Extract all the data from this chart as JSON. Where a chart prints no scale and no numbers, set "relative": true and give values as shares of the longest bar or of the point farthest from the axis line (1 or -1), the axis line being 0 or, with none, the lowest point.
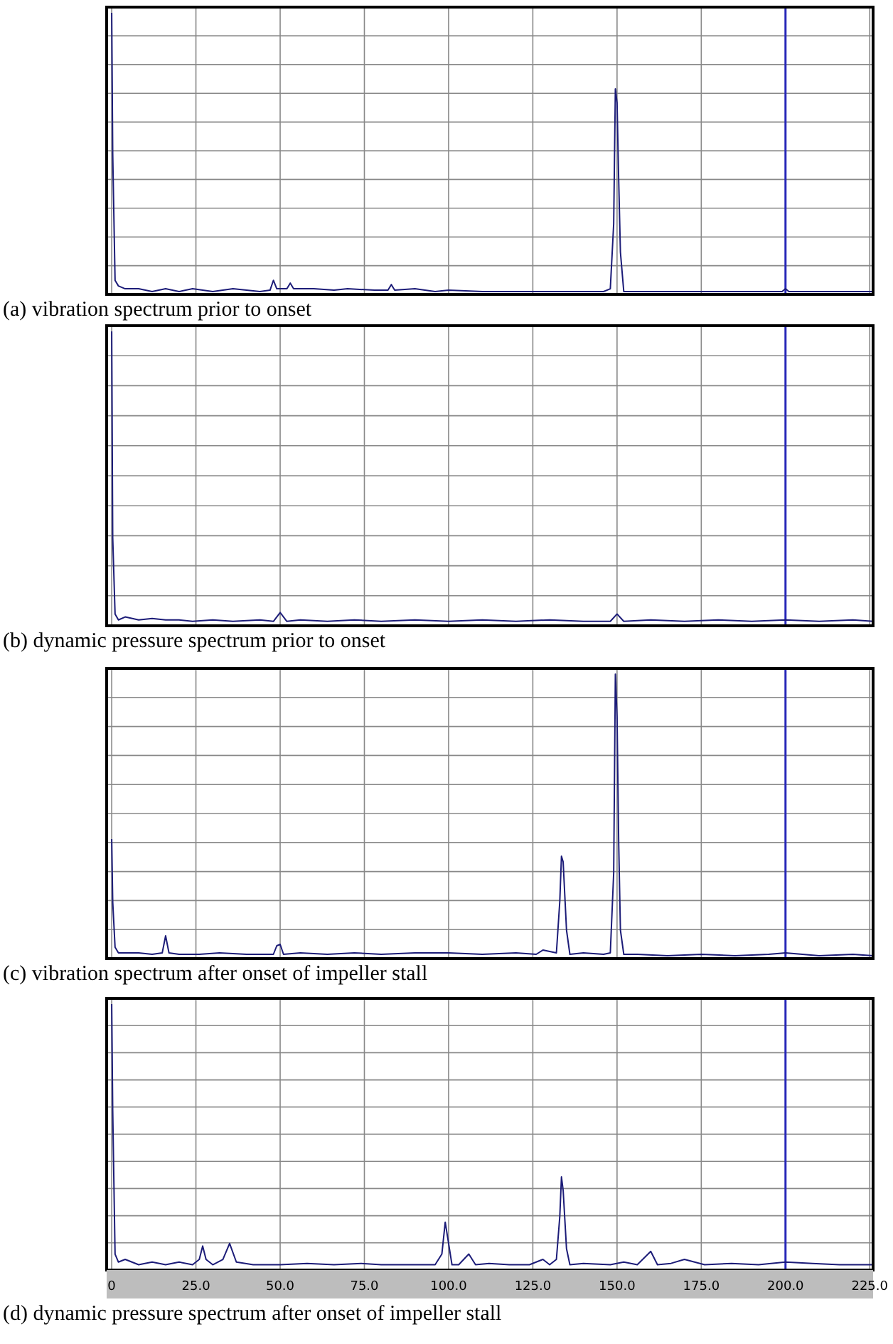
{
  "chart_data": [
    {
      "type": "line",
      "title": "(a) vibration spectrum prior to onset",
      "relative": true,
      "xlim": [
        -1.5,
        226
      ],
      "xticks": [
        {
          "value": 0,
          "label": null
        },
        {
          "value": 25,
          "label": null
        },
        {
          "value": 50,
          "label": null
        },
        {
          "value": 75,
          "label": null
        },
        {
          "value": 100,
          "label": null
        },
        {
          "value": 125,
          "label": null
        },
        {
          "value": 150,
          "label": null
        },
        {
          "value": 175,
          "label": null
        },
        {
          "value": 200,
          "label": null
        },
        {
          "value": 225,
          "label": null
        }
      ],
      "tick_labels": false,
      "grid": true,
      "ref_lines": [
        {
          "axis": "x",
          "value": 200,
          "color": "#2828b8"
        }
      ],
      "series": [
        {
          "color": "#1c1c78",
          "x": [
            0,
            0.3,
            1,
            2,
            4,
            8,
            12,
            16,
            20,
            24,
            30,
            36,
            44,
            47,
            48,
            49,
            52,
            53,
            54,
            60,
            66,
            70,
            78,
            82,
            83,
            84,
            90,
            96,
            100,
            110,
            120,
            130,
            140,
            146,
            148,
            149,
            149.5,
            150,
            150.5,
            151,
            152,
            156,
            165,
            175,
            185,
            195,
            199,
            200,
            201,
            210,
            220,
            226
          ],
          "values": [
            1,
            0.5,
            0.05,
            0.03,
            0.02,
            0.02,
            0.01,
            0.02,
            0.01,
            0.02,
            0.01,
            0.02,
            0.01,
            0.015,
            0.05,
            0.02,
            0.02,
            0.04,
            0.02,
            0.02,
            0.015,
            0.02,
            0.015,
            0.015,
            0.035,
            0.015,
            0.02,
            0.01,
            0.015,
            0.01,
            0.01,
            0.01,
            0.01,
            0.01,
            0.02,
            0.25,
            0.73,
            0.68,
            0.4,
            0.15,
            0.01,
            0.01,
            0.01,
            0.01,
            0.01,
            0.01,
            0.01,
            0.02,
            0.01,
            0.01,
            0.01,
            0.01
          ]
        }
      ]
    },
    {
      "type": "line",
      "title": "(b) dynamic pressure spectrum prior to onset",
      "relative": true,
      "xlim": [
        -1.5,
        226
      ],
      "xticks": [
        {
          "value": 0,
          "label": null
        },
        {
          "value": 25,
          "label": null
        },
        {
          "value": 50,
          "label": null
        },
        {
          "value": 75,
          "label": null
        },
        {
          "value": 100,
          "label": null
        },
        {
          "value": 125,
          "label": null
        },
        {
          "value": 150,
          "label": null
        },
        {
          "value": 175,
          "label": null
        },
        {
          "value": 200,
          "label": null
        },
        {
          "value": 225,
          "label": null
        }
      ],
      "tick_labels": false,
      "grid": true,
      "ref_lines": [
        {
          "axis": "x",
          "value": 200,
          "color": "#2828b8"
        }
      ],
      "series": [
        {
          "color": "#1c1c78",
          "x": [
            0,
            0.3,
            1,
            2,
            4,
            8,
            12,
            16,
            20,
            24,
            30,
            36,
            44,
            48,
            50,
            52,
            56,
            64,
            72,
            80,
            90,
            100,
            110,
            120,
            130,
            140,
            148,
            150,
            152,
            160,
            170,
            180,
            190,
            200,
            210,
            220,
            226
          ],
          "values": [
            1,
            0.3,
            0.04,
            0.02,
            0.03,
            0.02,
            0.025,
            0.02,
            0.02,
            0.015,
            0.02,
            0.015,
            0.02,
            0.015,
            0.045,
            0.015,
            0.02,
            0.015,
            0.02,
            0.015,
            0.02,
            0.015,
            0.02,
            0.015,
            0.02,
            0.015,
            0.015,
            0.04,
            0.015,
            0.02,
            0.015,
            0.02,
            0.015,
            0.02,
            0.015,
            0.02,
            0.015
          ]
        }
      ]
    },
    {
      "type": "line",
      "title": "(c) vibration spectrum after onset of impeller stall",
      "relative": true,
      "xlim": [
        -1.5,
        226
      ],
      "xticks": [
        {
          "value": 0,
          "label": null
        },
        {
          "value": 25,
          "label": null
        },
        {
          "value": 50,
          "label": null
        },
        {
          "value": 75,
          "label": null
        },
        {
          "value": 100,
          "label": null
        },
        {
          "value": 125,
          "label": null
        },
        {
          "value": 150,
          "label": null
        },
        {
          "value": 175,
          "label": null
        },
        {
          "value": 200,
          "label": null
        },
        {
          "value": 225,
          "label": null
        }
      ],
      "tick_labels": false,
      "grid": true,
      "ref_lines": [
        {
          "axis": "x",
          "value": 200,
          "color": "#2828b8"
        }
      ],
      "series": [
        {
          "color": "#1c1c78",
          "x": [
            0,
            0.3,
            1,
            2,
            4,
            8,
            12,
            15,
            16,
            17,
            20,
            26,
            32,
            40,
            48,
            49,
            50,
            51,
            56,
            64,
            72,
            80,
            90,
            100,
            110,
            120,
            126,
            128,
            132,
            133,
            133.5,
            134,
            135,
            136,
            140,
            146,
            148,
            149,
            149.5,
            150,
            150.5,
            151,
            152,
            156,
            165,
            175,
            185,
            195,
            200,
            210,
            220,
            226
          ],
          "values": [
            0.42,
            0.2,
            0.04,
            0.02,
            0.02,
            0.02,
            0.015,
            0.02,
            0.08,
            0.02,
            0.015,
            0.015,
            0.02,
            0.015,
            0.015,
            0.045,
            0.05,
            0.015,
            0.02,
            0.015,
            0.02,
            0.015,
            0.02,
            0.02,
            0.015,
            0.02,
            0.015,
            0.03,
            0.02,
            0.2,
            0.36,
            0.34,
            0.1,
            0.015,
            0.02,
            0.015,
            0.02,
            0.3,
            1,
            0.85,
            0.4,
            0.1,
            0.015,
            0.015,
            0.01,
            0.015,
            0.01,
            0.015,
            0.02,
            0.01,
            0.015,
            0.01
          ]
        }
      ]
    },
    {
      "type": "line",
      "title": "(d) dynamic pressure spectrum after onset of impeller stall",
      "relative": true,
      "xlim": [
        -1.5,
        226
      ],
      "xticks": [
        {
          "value": 0,
          "label": "0"
        },
        {
          "value": 25,
          "label": "25.0"
        },
        {
          "value": 50,
          "label": "50.0"
        },
        {
          "value": 75,
          "label": "75.0"
        },
        {
          "value": 100,
          "label": "100.0"
        },
        {
          "value": 125,
          "label": "125.0"
        },
        {
          "value": 150,
          "label": "150.0"
        },
        {
          "value": 175,
          "label": "175.0"
        },
        {
          "value": 200,
          "label": "200.0"
        },
        {
          "value": 225,
          "label": "225.0"
        }
      ],
      "tick_labels": "x",
      "grid": true,
      "ref_lines": [
        {
          "axis": "x",
          "value": 200,
          "color": "#2828b8"
        }
      ],
      "series": [
        {
          "color": "#1c1c78",
          "x": [
            0,
            0.3,
            1,
            2,
            4,
            8,
            12,
            16,
            20,
            24,
            26,
            27,
            28,
            30,
            33,
            35,
            37,
            42,
            50,
            58,
            66,
            74,
            80,
            88,
            96,
            98,
            99,
            100,
            101,
            103,
            106,
            108,
            112,
            118,
            124,
            128,
            130,
            132,
            133,
            133.5,
            134,
            135,
            136,
            140,
            148,
            152,
            156,
            160,
            162,
            166,
            170,
            176,
            184,
            192,
            200,
            208,
            216,
            226
          ],
          "values": [
            1,
            0.6,
            0.06,
            0.03,
            0.04,
            0.02,
            0.03,
            0.02,
            0.03,
            0.02,
            0.04,
            0.09,
            0.04,
            0.02,
            0.04,
            0.1,
            0.03,
            0.02,
            0.02,
            0.025,
            0.02,
            0.025,
            0.02,
            0.02,
            0.02,
            0.06,
            0.18,
            0.1,
            0.02,
            0.02,
            0.06,
            0.02,
            0.025,
            0.02,
            0.02,
            0.04,
            0.02,
            0.04,
            0.2,
            0.35,
            0.3,
            0.08,
            0.02,
            0.025,
            0.02,
            0.03,
            0.02,
            0.07,
            0.02,
            0.025,
            0.04,
            0.02,
            0.025,
            0.02,
            0.03,
            0.025,
            0.02,
            0.02
          ]
        }
      ]
    }
  ]
}
